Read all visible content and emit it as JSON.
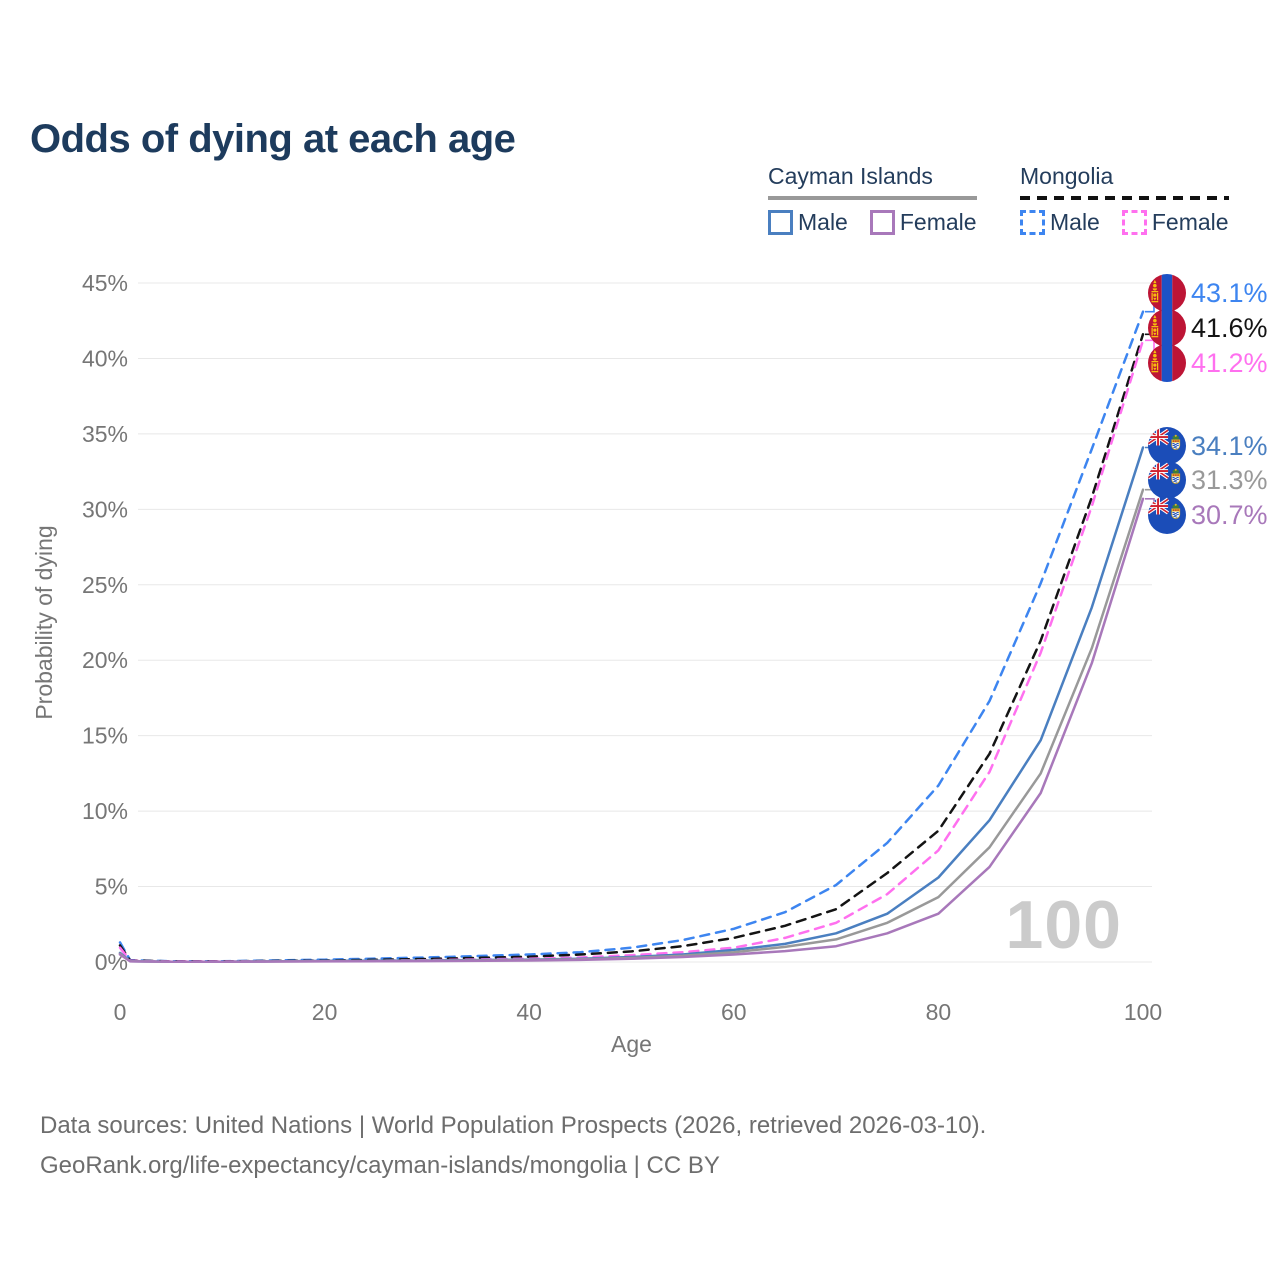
{
  "title": "Odds of dying at each age",
  "legend": {
    "cayman": {
      "title": "Cayman Islands",
      "male_label": "Male",
      "female_label": "Female"
    },
    "mongolia": {
      "title": "Mongolia",
      "male_label": "Male",
      "female_label": "Female"
    }
  },
  "icons": {
    "mongolia_flag": "mongolia-flag-icon",
    "cayman_flag": "cayman-islands-flag-icon"
  },
  "colors": {
    "title_text": "#1d3b5d",
    "legend_text": "#243d5c",
    "axis_text": "#767676",
    "grid": "#e8e8e8",
    "watermark": "#cbcbcb",
    "footer_text": "#6d6d6d",
    "cayman_underline": "#999999",
    "mongolia_underline": "#111111",
    "cayman_male": "#4a7fc0",
    "cayman_total": "#999999",
    "cayman_female": "#a878ba",
    "mongolia_male": "#3d85f0",
    "mongolia_total": "#141414",
    "mongolia_female": "#ff70ef"
  },
  "chart_data": {
    "type": "line",
    "title": "Odds of dying at each age",
    "xlabel": "Age",
    "ylabel": "Probability of dying",
    "xlim": [
      0,
      100
    ],
    "ylim": [
      0,
      45
    ],
    "x_ticks": [
      0,
      20,
      40,
      60,
      80,
      100
    ],
    "y_ticks": [
      "0%",
      "5%",
      "10%",
      "15%",
      "20%",
      "25%",
      "30%",
      "35%",
      "40%",
      "45%"
    ],
    "grid": "horizontal",
    "legend_position": "top-right",
    "watermark": "100",
    "ages": [
      0,
      1,
      5,
      10,
      20,
      30,
      40,
      45,
      50,
      55,
      60,
      65,
      70,
      75,
      80,
      85,
      90,
      95,
      100
    ],
    "series": [
      {
        "name": "Mongolia Male",
        "country": "mongolia",
        "sex": "male",
        "style": "dashed",
        "color": "#3d85f0",
        "end_label": "43.1%",
        "values": [
          1.3,
          0.12,
          0.05,
          0.05,
          0.15,
          0.3,
          0.5,
          0.65,
          0.95,
          1.45,
          2.2,
          3.3,
          5.1,
          7.9,
          11.7,
          17.3,
          25.1,
          34.0,
          43.1
        ]
      },
      {
        "name": "Mongolia Total",
        "country": "mongolia",
        "sex": "both",
        "style": "dashed",
        "color": "#141414",
        "end_label": "41.6%",
        "values": [
          1.1,
          0.1,
          0.04,
          0.04,
          0.1,
          0.2,
          0.35,
          0.5,
          0.7,
          1.05,
          1.6,
          2.4,
          3.5,
          5.9,
          8.7,
          13.8,
          21.3,
          30.8,
          41.6
        ]
      },
      {
        "name": "Mongolia Female",
        "country": "mongolia",
        "sex": "female",
        "style": "dashed",
        "color": "#ff70ef",
        "end_label": "41.2%",
        "values": [
          0.95,
          0.08,
          0.03,
          0.03,
          0.06,
          0.12,
          0.22,
          0.3,
          0.45,
          0.65,
          0.95,
          1.6,
          2.6,
          4.5,
          7.4,
          12.6,
          20.5,
          30.2,
          41.2
        ]
      },
      {
        "name": "Cayman Islands Male",
        "country": "cayman",
        "sex": "male",
        "style": "solid",
        "color": "#4a7fc0",
        "end_label": "34.1%",
        "values": [
          0.6,
          0.05,
          0.02,
          0.02,
          0.07,
          0.1,
          0.16,
          0.22,
          0.33,
          0.5,
          0.8,
          1.2,
          1.9,
          3.2,
          5.6,
          9.4,
          14.7,
          23.5,
          34.1
        ]
      },
      {
        "name": "Cayman Islands Total",
        "country": "cayman",
        "sex": "both",
        "style": "solid",
        "color": "#999999",
        "end_label": "31.3%",
        "values": [
          0.55,
          0.045,
          0.018,
          0.018,
          0.055,
          0.08,
          0.13,
          0.18,
          0.27,
          0.42,
          0.65,
          1.0,
          1.5,
          2.6,
          4.3,
          7.6,
          12.5,
          20.8,
          31.3
        ]
      },
      {
        "name": "Cayman Islands Female",
        "country": "cayman",
        "sex": "female",
        "style": "solid",
        "color": "#a878ba",
        "end_label": "30.7%",
        "values": [
          0.5,
          0.04,
          0.015,
          0.015,
          0.04,
          0.06,
          0.1,
          0.14,
          0.21,
          0.33,
          0.5,
          0.72,
          1.05,
          1.9,
          3.2,
          6.3,
          11.2,
          19.8,
          30.7
        ]
      }
    ]
  },
  "footer": {
    "line1": "Data sources: United Nations | World Population Prospects (2026, retrieved 2026-03-10).",
    "line2": "GeoRank.org/life-expectancy/cayman-islands/mongolia | CC BY"
  }
}
